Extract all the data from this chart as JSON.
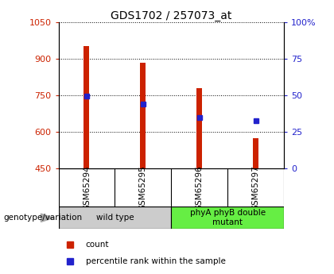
{
  "title": "GDS1702 / 257073_at",
  "samples": [
    "GSM65294",
    "GSM65295",
    "GSM65296",
    "GSM65297"
  ],
  "bar_values": [
    950,
    882,
    780,
    575
  ],
  "bar_bottom": 450,
  "blue_values": [
    748,
    715,
    658,
    645
  ],
  "bar_color": "#cc2200",
  "blue_color": "#2222cc",
  "ylim_left": [
    450,
    1050
  ],
  "ylim_right": [
    0,
    100
  ],
  "yticks_left": [
    450,
    600,
    750,
    900,
    1050
  ],
  "yticks_right": [
    0,
    25,
    50,
    75,
    100
  ],
  "groups": [
    {
      "label": "wild type",
      "samples": [
        0,
        1
      ],
      "color": "#cccccc"
    },
    {
      "label": "phyA phyB double\nmutant",
      "samples": [
        2,
        3
      ],
      "color": "#66ee44"
    }
  ],
  "group_row_label": "genotype/variation",
  "legend_items": [
    {
      "label": "count",
      "color": "#cc2200"
    },
    {
      "label": "percentile rank within the sample",
      "color": "#2222cc"
    }
  ],
  "sample_bg_color": "#cccccc",
  "plot_bg": "white",
  "bar_width": 0.1
}
